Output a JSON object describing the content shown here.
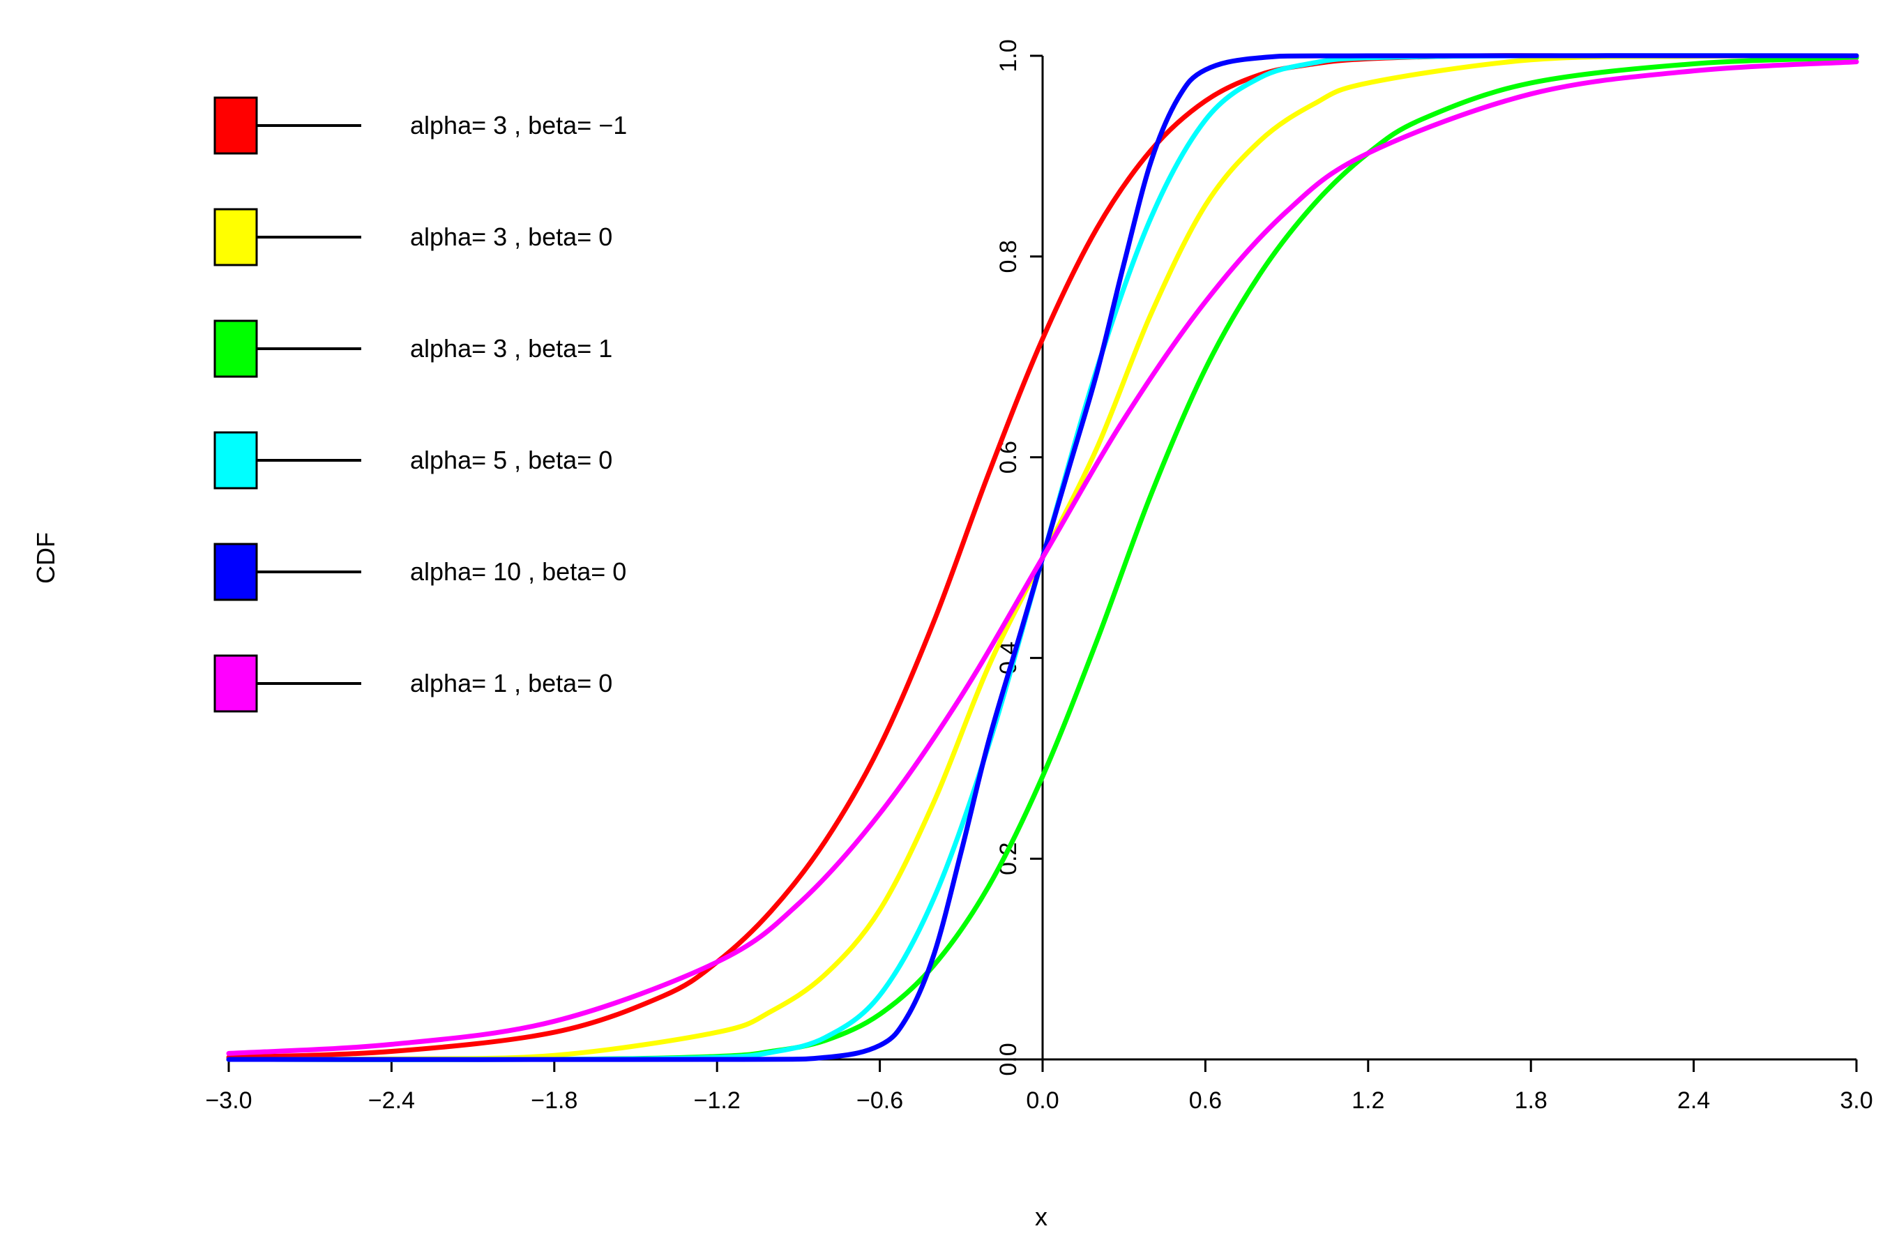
{
  "chart_data": {
    "type": "line",
    "title": "",
    "xlabel": "x",
    "ylabel": "CDF",
    "xlim": [
      -3.0,
      3.0
    ],
    "ylim": [
      0.0,
      1.0
    ],
    "x_ticks": [
      -3.0,
      -2.4,
      -1.8,
      -1.2,
      -0.6,
      0.0,
      0.6,
      1.2,
      1.8,
      2.4,
      3.0
    ],
    "x_tick_labels": [
      "−3.0",
      "−2.4",
      "−1.8",
      "−1.2",
      "−0.6",
      "0.0",
      "0.6",
      "1.2",
      "1.8",
      "2.4",
      "3.0"
    ],
    "y_ticks": [
      0.0,
      0.2,
      0.4,
      0.6,
      0.8,
      1.0
    ],
    "y_tick_labels": [
      "0.0",
      "0.2",
      "0.4",
      "0.6",
      "0.8",
      "1.0"
    ],
    "grid": false,
    "legend_position": "top-left",
    "series": [
      {
        "name": "alpha= 3 , beta= −1",
        "color": "#ff0000",
        "x": [
          -3.0,
          -2.4,
          -1.8,
          -1.4,
          -1.2,
          -1.0,
          -0.8,
          -0.6,
          -0.4,
          -0.2,
          0.0,
          0.2,
          0.4,
          0.6,
          0.8,
          1.0,
          1.2,
          1.6,
          2.0,
          2.4,
          3.0
        ],
        "y": [
          0.002,
          0.008,
          0.027,
          0.063,
          0.097,
          0.148,
          0.218,
          0.312,
          0.437,
          0.583,
          0.718,
          0.828,
          0.906,
          0.955,
          0.981,
          0.992,
          0.997,
          1.0,
          1.0,
          1.0,
          1.0
        ]
      },
      {
        "name": "alpha= 3 , beta= 0",
        "color": "#ffff00",
        "x": [
          -3.0,
          -2.4,
          -1.8,
          -1.2,
          -1.0,
          -0.8,
          -0.6,
          -0.4,
          -0.2,
          0.0,
          0.2,
          0.4,
          0.6,
          0.8,
          1.0,
          1.2,
          1.8,
          2.4,
          3.0
        ],
        "y": [
          0.0,
          0.0005,
          0.004,
          0.027,
          0.048,
          0.085,
          0.149,
          0.257,
          0.391,
          0.5,
          0.609,
          0.743,
          0.851,
          0.915,
          0.952,
          0.973,
          0.996,
          0.9995,
          1.0
        ]
      },
      {
        "name": "alpha= 3 , beta= 1",
        "color": "#00ff00",
        "x": [
          -3.0,
          -1.8,
          -1.2,
          -1.0,
          -0.8,
          -0.6,
          -0.4,
          -0.2,
          0.0,
          0.2,
          0.4,
          0.6,
          0.8,
          1.0,
          1.2,
          1.4,
          1.8,
          2.4,
          3.0
        ],
        "y": [
          0.0,
          0.0,
          0.003,
          0.008,
          0.019,
          0.045,
          0.094,
          0.172,
          0.282,
          0.417,
          0.563,
          0.688,
          0.782,
          0.852,
          0.903,
          0.937,
          0.973,
          0.992,
          0.998
        ]
      },
      {
        "name": "alpha= 5 , beta= 0",
        "color": "#00ffff",
        "x": [
          -3.0,
          -1.8,
          -1.2,
          -1.0,
          -0.8,
          -0.6,
          -0.4,
          -0.2,
          0.0,
          0.2,
          0.4,
          0.6,
          0.8,
          1.0,
          1.2,
          1.8,
          3.0
        ],
        "y": [
          0.0,
          0.0,
          0.002,
          0.007,
          0.022,
          0.064,
          0.161,
          0.312,
          0.5,
          0.688,
          0.839,
          0.936,
          0.978,
          0.993,
          0.998,
          1.0,
          1.0
        ]
      },
      {
        "name": "alpha= 10 , beta= 0",
        "color": "#0000ff",
        "x": [
          -3.0,
          -1.2,
          -0.8,
          -0.6,
          -0.5,
          -0.4,
          -0.3,
          -0.2,
          -0.1,
          0.0,
          0.1,
          0.2,
          0.3,
          0.4,
          0.5,
          0.6,
          0.8,
          1.2,
          3.0
        ],
        "y": [
          0.0,
          0.0,
          0.002,
          0.014,
          0.042,
          0.105,
          0.207,
          0.316,
          0.408,
          0.5,
          0.592,
          0.684,
          0.793,
          0.895,
          0.958,
          0.986,
          0.998,
          1.0,
          1.0
        ]
      },
      {
        "name": "alpha= 1 , beta= 0",
        "color": "#ff00ff",
        "x": [
          -3.0,
          -2.4,
          -1.8,
          -1.2,
          -0.9,
          -0.6,
          -0.3,
          0.0,
          0.3,
          0.6,
          0.9,
          1.2,
          1.8,
          2.4,
          3.0
        ],
        "y": [
          0.006,
          0.015,
          0.038,
          0.097,
          0.155,
          0.245,
          0.362,
          0.5,
          0.638,
          0.755,
          0.845,
          0.903,
          0.962,
          0.985,
          0.994
        ]
      }
    ]
  }
}
